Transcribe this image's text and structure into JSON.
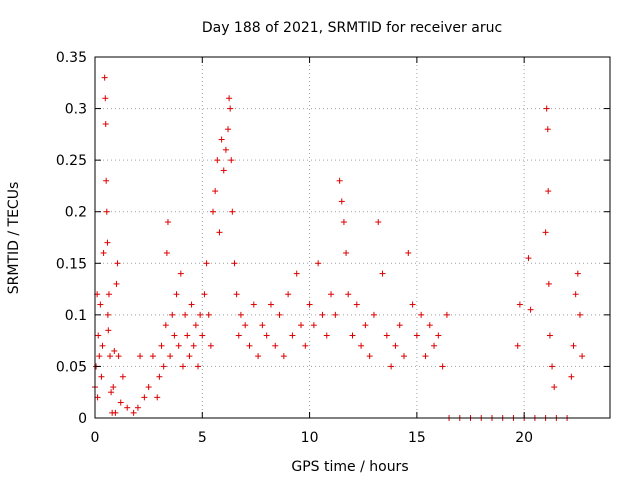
{
  "chart_data": {
    "type": "scatter",
    "title": "Day 188 of 2021, SRMTID for receiver aruc",
    "xlabel": "GPS time / hours",
    "ylabel": "SRMTID / TECUs",
    "xlim": [
      0,
      24
    ],
    "ylim": [
      0,
      0.35
    ],
    "xticks": [
      0,
      5,
      10,
      15,
      20
    ],
    "xtick_labels": [
      "0",
      "5",
      "10",
      "15",
      "20"
    ],
    "yticks": [
      0,
      0.05,
      0.1,
      0.15,
      0.2,
      0.25,
      0.3,
      0.35
    ],
    "ytick_labels": [
      "0",
      "0.05",
      "0.1",
      "0.15",
      "0.2",
      "0.25",
      "0.3",
      "0.35"
    ],
    "grid": true,
    "legend": "none",
    "marker": "+",
    "series_color": "#dd0000",
    "series": [
      {
        "name": "SRMTID",
        "points": [
          [
            0.0,
            0.03
          ],
          [
            0.05,
            0.05
          ],
          [
            0.1,
            0.12
          ],
          [
            0.12,
            0.02
          ],
          [
            0.15,
            0.08
          ],
          [
            0.2,
            0.06
          ],
          [
            0.25,
            0.11
          ],
          [
            0.3,
            0.04
          ],
          [
            0.35,
            0.07
          ],
          [
            0.4,
            0.16
          ],
          [
            0.45,
            0.33
          ],
          [
            0.48,
            0.31
          ],
          [
            0.5,
            0.285
          ],
          [
            0.52,
            0.23
          ],
          [
            0.55,
            0.2
          ],
          [
            0.58,
            0.17
          ],
          [
            0.6,
            0.1
          ],
          [
            0.62,
            0.085
          ],
          [
            0.65,
            0.12
          ],
          [
            0.7,
            0.06
          ],
          [
            0.75,
            0.025
          ],
          [
            0.8,
            0.005
          ],
          [
            0.85,
            0.03
          ],
          [
            0.9,
            0.065
          ],
          [
            0.95,
            0.005
          ],
          [
            1.0,
            0.13
          ],
          [
            1.05,
            0.15
          ],
          [
            1.1,
            0.06
          ],
          [
            1.2,
            0.015
          ],
          [
            1.3,
            0.04
          ],
          [
            1.5,
            0.01
          ],
          [
            1.8,
            0.005
          ],
          [
            2.0,
            0.01
          ],
          [
            2.1,
            0.06
          ],
          [
            2.3,
            0.02
          ],
          [
            2.5,
            0.03
          ],
          [
            2.7,
            0.06
          ],
          [
            2.9,
            0.02
          ],
          [
            3.0,
            0.04
          ],
          [
            3.1,
            0.07
          ],
          [
            3.2,
            0.05
          ],
          [
            3.3,
            0.09
          ],
          [
            3.35,
            0.16
          ],
          [
            3.4,
            0.19
          ],
          [
            3.5,
            0.06
          ],
          [
            3.6,
            0.1
          ],
          [
            3.7,
            0.08
          ],
          [
            3.8,
            0.12
          ],
          [
            3.9,
            0.07
          ],
          [
            4.0,
            0.14
          ],
          [
            4.1,
            0.05
          ],
          [
            4.2,
            0.1
          ],
          [
            4.3,
            0.08
          ],
          [
            4.4,
            0.06
          ],
          [
            4.5,
            0.11
          ],
          [
            4.6,
            0.07
          ],
          [
            4.7,
            0.09
          ],
          [
            4.8,
            0.05
          ],
          [
            4.9,
            0.1
          ],
          [
            5.0,
            0.08
          ],
          [
            5.1,
            0.12
          ],
          [
            5.2,
            0.15
          ],
          [
            5.3,
            0.1
          ],
          [
            5.4,
            0.07
          ],
          [
            5.5,
            0.2
          ],
          [
            5.6,
            0.22
          ],
          [
            5.7,
            0.25
          ],
          [
            5.8,
            0.18
          ],
          [
            5.9,
            0.27
          ],
          [
            6.0,
            0.24
          ],
          [
            6.1,
            0.26
          ],
          [
            6.2,
            0.28
          ],
          [
            6.25,
            0.31
          ],
          [
            6.3,
            0.3
          ],
          [
            6.35,
            0.25
          ],
          [
            6.4,
            0.2
          ],
          [
            6.5,
            0.15
          ],
          [
            6.6,
            0.12
          ],
          [
            6.7,
            0.08
          ],
          [
            6.8,
            0.1
          ],
          [
            7.0,
            0.09
          ],
          [
            7.2,
            0.07
          ],
          [
            7.4,
            0.11
          ],
          [
            7.6,
            0.06
          ],
          [
            7.8,
            0.09
          ],
          [
            8.0,
            0.08
          ],
          [
            8.2,
            0.11
          ],
          [
            8.4,
            0.07
          ],
          [
            8.6,
            0.1
          ],
          [
            8.8,
            0.06
          ],
          [
            9.0,
            0.12
          ],
          [
            9.2,
            0.08
          ],
          [
            9.4,
            0.14
          ],
          [
            9.6,
            0.09
          ],
          [
            9.8,
            0.07
          ],
          [
            10.0,
            0.11
          ],
          [
            10.2,
            0.09
          ],
          [
            10.4,
            0.15
          ],
          [
            10.6,
            0.1
          ],
          [
            10.8,
            0.08
          ],
          [
            11.0,
            0.12
          ],
          [
            11.2,
            0.1
          ],
          [
            11.4,
            0.23
          ],
          [
            11.5,
            0.21
          ],
          [
            11.6,
            0.19
          ],
          [
            11.7,
            0.16
          ],
          [
            11.8,
            0.12
          ],
          [
            12.0,
            0.08
          ],
          [
            12.2,
            0.11
          ],
          [
            12.4,
            0.07
          ],
          [
            12.6,
            0.09
          ],
          [
            12.8,
            0.06
          ],
          [
            13.0,
            0.1
          ],
          [
            13.2,
            0.19
          ],
          [
            13.4,
            0.14
          ],
          [
            13.6,
            0.08
          ],
          [
            13.8,
            0.05
          ],
          [
            14.0,
            0.07
          ],
          [
            14.2,
            0.09
          ],
          [
            14.4,
            0.06
          ],
          [
            14.6,
            0.16
          ],
          [
            14.8,
            0.11
          ],
          [
            15.0,
            0.08
          ],
          [
            15.2,
            0.1
          ],
          [
            15.4,
            0.06
          ],
          [
            15.6,
            0.09
          ],
          [
            15.8,
            0.07
          ],
          [
            16.0,
            0.08
          ],
          [
            16.2,
            0.05
          ],
          [
            16.4,
            0.1
          ],
          [
            16.5,
            0.0
          ],
          [
            17.0,
            0.0
          ],
          [
            17.5,
            0.0
          ],
          [
            18.0,
            0.0
          ],
          [
            18.5,
            0.0
          ],
          [
            19.0,
            0.0
          ],
          [
            19.5,
            0.0
          ],
          [
            20.0,
            0.0
          ],
          [
            20.5,
            0.0
          ],
          [
            21.0,
            0.0
          ],
          [
            19.7,
            0.07
          ],
          [
            19.8,
            0.11
          ],
          [
            20.2,
            0.155
          ],
          [
            20.3,
            0.105
          ],
          [
            21.0,
            0.18
          ],
          [
            21.05,
            0.3
          ],
          [
            21.1,
            0.28
          ],
          [
            21.12,
            0.22
          ],
          [
            21.15,
            0.13
          ],
          [
            21.2,
            0.08
          ],
          [
            21.3,
            0.05
          ],
          [
            21.4,
            0.03
          ],
          [
            21.5,
            0.0
          ],
          [
            22.0,
            0.0
          ],
          [
            22.2,
            0.04
          ],
          [
            22.3,
            0.07
          ],
          [
            22.4,
            0.12
          ],
          [
            22.5,
            0.14
          ],
          [
            22.6,
            0.1
          ],
          [
            22.7,
            0.06
          ]
        ]
      }
    ]
  }
}
